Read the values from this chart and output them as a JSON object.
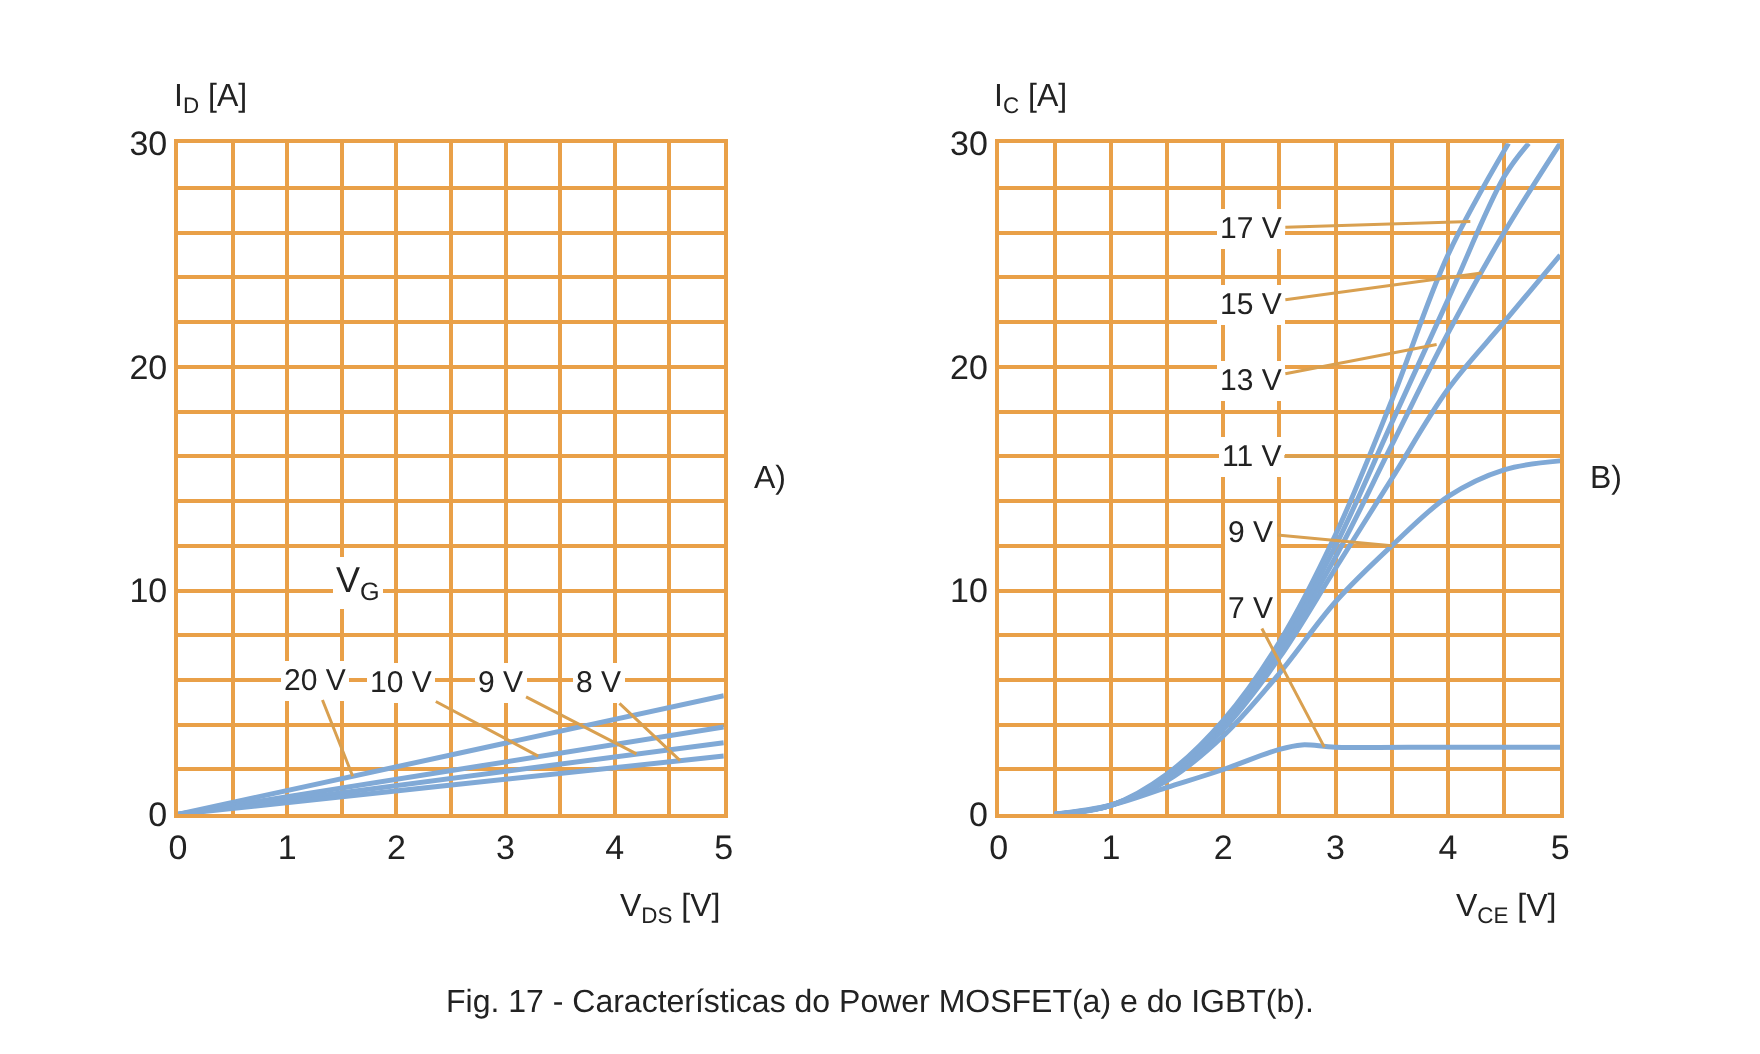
{
  "chart_data": [
    {
      "type": "line",
      "xlabel": "V$_{DS}$ [V]",
      "ylabel": "I$_{D}$ [A]",
      "xlim": [
        0,
        5
      ],
      "ylim": [
        0,
        30
      ],
      "xticks": [
        0,
        1,
        2,
        3,
        4,
        5
      ],
      "yticks": [
        0,
        10,
        20,
        30
      ],
      "grid": true,
      "legend": false,
      "marker": "none",
      "line_style": "solid",
      "x": [
        0,
        5
      ],
      "series": [
        {
          "color": "#80a9d6",
          "values": [
            0,
            5.3
          ]
        },
        {
          "color": "#80a9d6",
          "values": [
            0,
            3.9
          ]
        },
        {
          "color": "#80a9d6",
          "values": [
            0,
            3.2
          ]
        },
        {
          "color": "#80a9d6",
          "values": [
            0,
            2.6
          ]
        }
      ],
      "annotations": [
        "V$_{G}$",
        "A)",
        {
          "text": "20 V",
          "x": 1.6,
          "y": 1.7
        },
        {
          "text": "10 V",
          "x": 3.3,
          "y": 2.6
        },
        {
          "text": "9 V",
          "x": 4.2,
          "y": 2.7
        },
        {
          "text": "8 V",
          "x": 4.6,
          "y": 2.4
        }
      ]
    },
    {
      "type": "line",
      "xlabel": "V$_{CE}$ [V]",
      "ylabel": "I$_{C}$ [A]",
      "xlim": [
        0,
        5
      ],
      "ylim": [
        0,
        30
      ],
      "xticks": [
        0,
        1,
        2,
        3,
        4,
        5
      ],
      "yticks": [
        0,
        10,
        20,
        30
      ],
      "grid": true,
      "legend": false,
      "marker": "none",
      "line_style": "solid",
      "series": [
        {
          "color": "#80a9d6",
          "x": [
            0.5,
            1,
            1.5,
            2,
            2.5,
            2.7,
            3,
            4,
            5
          ],
          "values": [
            0,
            0.4,
            1.2,
            2,
            2.9,
            3.1,
            3,
            3,
            3
          ]
        },
        {
          "color": "#80a9d6",
          "x": [
            0.5,
            1,
            1.5,
            2,
            2.5,
            3,
            3.5,
            4,
            4.5,
            5
          ],
          "values": [
            0,
            0.4,
            1.5,
            3.5,
            6.3,
            9.5,
            12,
            14.2,
            15.4,
            15.8
          ]
        },
        {
          "color": "#80a9d6",
          "x": [
            0.5,
            1,
            1.5,
            2,
            2.5,
            3,
            3.5,
            4,
            4.5,
            5
          ],
          "values": [
            0,
            0.4,
            1.6,
            3.8,
            7,
            11,
            15,
            19,
            22,
            25
          ]
        },
        {
          "color": "#80a9d6",
          "x": [
            0.5,
            1,
            1.5,
            2,
            2.5,
            3,
            3.5,
            4,
            4.5,
            5
          ],
          "values": [
            0,
            0.4,
            1.7,
            4,
            7.3,
            11.5,
            16.5,
            21.5,
            26,
            30
          ]
        },
        {
          "color": "#80a9d6",
          "x": [
            0.5,
            1,
            1.5,
            2,
            2.5,
            3,
            3.5,
            4,
            4.5,
            4.72
          ],
          "values": [
            0,
            0.4,
            1.7,
            4.1,
            7.5,
            12,
            17.5,
            23,
            28.5,
            30
          ]
        },
        {
          "color": "#80a9d6",
          "x": [
            0.5,
            1,
            1.5,
            2,
            2.5,
            3,
            3.5,
            4,
            4.54
          ],
          "values": [
            0,
            0.4,
            1.8,
            4.2,
            7.7,
            12.5,
            18.5,
            25,
            30
          ]
        }
      ],
      "annotations": [
        "B)",
        "Fig. 17 - Características do Power MOSFET(a) e do IGBT(b).",
        {
          "text": "17 V",
          "x": 4.2,
          "y": 26.5
        },
        {
          "text": "15 V",
          "x": 4.3,
          "y": 24.2
        },
        {
          "text": "13 V",
          "x": 3.9,
          "y": 21
        },
        {
          "text": "11 V",
          "x": 3.6,
          "y": 16
        },
        {
          "text": "9 V",
          "x": 3.5,
          "y": 12
        },
        {
          "text": "7 V",
          "x": 2.9,
          "y": 3
        }
      ]
    }
  ]
}
